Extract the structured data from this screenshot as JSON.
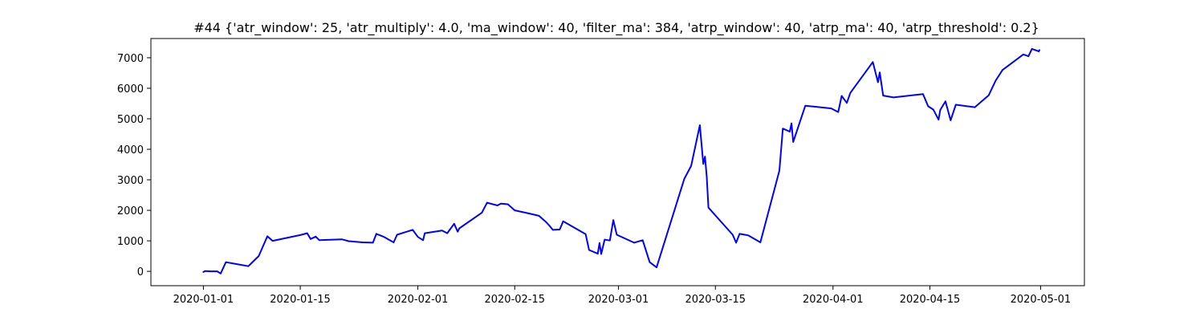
{
  "chart_data": {
    "type": "line",
    "title": "#44 {'atr_window': 25, 'atr_multiply': 4.0, 'ma_window': 40, 'filter_ma': 384, 'atrp_window': 40, 'atrp_ma': 40, 'atrp_threshold': 0.2}",
    "xlabel": "",
    "ylabel": "",
    "grid": false,
    "xlim": [
      "2019-12-24T10:00",
      "2020-05-07T08:00"
    ],
    "ylim": [
      -470,
      7630
    ],
    "x_ticks": [
      "2020-01-01",
      "2020-01-15",
      "2020-02-01",
      "2020-02-15",
      "2020-03-01",
      "2020-03-15",
      "2020-04-01",
      "2020-04-15",
      "2020-05-01"
    ],
    "y_ticks": [
      0,
      1000,
      2000,
      3000,
      4000,
      5000,
      6000,
      7000
    ],
    "series": [
      {
        "color": "#0000ff",
        "points": [
          [
            "2020-01-01T00:00",
            -20
          ],
          [
            "2020-01-01T06:00",
            10
          ],
          [
            "2020-01-02T00:00",
            0
          ],
          [
            "2020-01-03T00:00",
            0
          ],
          [
            "2020-01-03T12:00",
            -70
          ],
          [
            "2020-01-04T06:00",
            300
          ],
          [
            "2020-01-06T00:00",
            230
          ],
          [
            "2020-01-07T12:00",
            170
          ],
          [
            "2020-01-08T00:00",
            280
          ],
          [
            "2020-01-09T00:00",
            500
          ],
          [
            "2020-01-10T06:00",
            1150
          ],
          [
            "2020-01-11T00:00",
            1000
          ],
          [
            "2020-01-15T00:00",
            1190
          ],
          [
            "2020-01-16T00:00",
            1250
          ],
          [
            "2020-01-16T12:00",
            1060
          ],
          [
            "2020-01-17T06:00",
            1140
          ],
          [
            "2020-01-17T18:00",
            1020
          ],
          [
            "2020-01-21T00:00",
            1050
          ],
          [
            "2020-01-22T00:00",
            990
          ],
          [
            "2020-01-24T00:00",
            950
          ],
          [
            "2020-01-25T12:00",
            940
          ],
          [
            "2020-01-26T00:00",
            1230
          ],
          [
            "2020-01-27T00:00",
            1140
          ],
          [
            "2020-01-28T12:00",
            950
          ],
          [
            "2020-01-29T00:00",
            1200
          ],
          [
            "2020-01-31T06:00",
            1360
          ],
          [
            "2020-02-01T00:00",
            1130
          ],
          [
            "2020-02-01T18:00",
            1020
          ],
          [
            "2020-02-02T00:00",
            1250
          ],
          [
            "2020-02-04T12:00",
            1340
          ],
          [
            "2020-02-05T06:00",
            1250
          ],
          [
            "2020-02-06T06:00",
            1560
          ],
          [
            "2020-02-06T18:00",
            1300
          ],
          [
            "2020-02-07T00:00",
            1410
          ],
          [
            "2020-02-10T06:00",
            1920
          ],
          [
            "2020-02-11T00:00",
            2250
          ],
          [
            "2020-02-12T12:00",
            2160
          ],
          [
            "2020-02-13T00:00",
            2220
          ],
          [
            "2020-02-14T00:00",
            2200
          ],
          [
            "2020-02-15T00:00",
            2000
          ],
          [
            "2020-02-17T00:00",
            1900
          ],
          [
            "2020-02-18T12:00",
            1820
          ],
          [
            "2020-02-19T12:00",
            1620
          ],
          [
            "2020-02-20T00:00",
            1500
          ],
          [
            "2020-02-20T12:00",
            1360
          ],
          [
            "2020-02-21T12:00",
            1370
          ],
          [
            "2020-02-22T00:00",
            1640
          ],
          [
            "2020-02-25T06:00",
            1220
          ],
          [
            "2020-02-25T18:00",
            700
          ],
          [
            "2020-02-27T00:00",
            580
          ],
          [
            "2020-02-27T06:00",
            930
          ],
          [
            "2020-02-27T12:00",
            570
          ],
          [
            "2020-02-28T00:00",
            1040
          ],
          [
            "2020-02-28T18:00",
            1010
          ],
          [
            "2020-02-29T06:00",
            1680
          ],
          [
            "2020-02-29T18:00",
            1200
          ],
          [
            "2020-03-03T06:00",
            940
          ],
          [
            "2020-03-04T12:00",
            1020
          ],
          [
            "2020-03-05T12:00",
            300
          ],
          [
            "2020-03-06T12:00",
            130
          ],
          [
            "2020-03-10T12:00",
            3030
          ],
          [
            "2020-03-11T12:00",
            3460
          ],
          [
            "2020-03-12T18:00",
            4790
          ],
          [
            "2020-03-13T06:00",
            3520
          ],
          [
            "2020-03-13T12:00",
            3760
          ],
          [
            "2020-03-13T18:00",
            3100
          ],
          [
            "2020-03-14T00:00",
            2090
          ],
          [
            "2020-03-17T12:00",
            1200
          ],
          [
            "2020-03-18T00:00",
            940
          ],
          [
            "2020-03-18T12:00",
            1230
          ],
          [
            "2020-03-19T06:00",
            1200
          ],
          [
            "2020-03-19T18:00",
            1180
          ],
          [
            "2020-03-21T12:00",
            950
          ],
          [
            "2020-03-24T06:00",
            3300
          ],
          [
            "2020-03-24T18:00",
            4680
          ],
          [
            "2020-03-25T18:00",
            4580
          ],
          [
            "2020-03-26T00:00",
            4850
          ],
          [
            "2020-03-26T06:00",
            4240
          ],
          [
            "2020-03-28T00:00",
            5430
          ],
          [
            "2020-03-31T18:00",
            5340
          ],
          [
            "2020-04-01T18:00",
            5220
          ],
          [
            "2020-04-02T06:00",
            5750
          ],
          [
            "2020-04-03T00:00",
            5520
          ],
          [
            "2020-04-03T12:00",
            5850
          ],
          [
            "2020-04-06T18:00",
            6860
          ],
          [
            "2020-04-07T12:00",
            6200
          ],
          [
            "2020-04-07T18:00",
            6520
          ],
          [
            "2020-04-08T06:00",
            5760
          ],
          [
            "2020-04-09T18:00",
            5700
          ],
          [
            "2020-04-14T00:00",
            5810
          ],
          [
            "2020-04-14T18:00",
            5410
          ],
          [
            "2020-04-15T12:00",
            5300
          ],
          [
            "2020-04-16T06:00",
            4970
          ],
          [
            "2020-04-16T12:00",
            5290
          ],
          [
            "2020-04-17T06:00",
            5570
          ],
          [
            "2020-04-18T00:00",
            4950
          ],
          [
            "2020-04-18T18:00",
            5460
          ],
          [
            "2020-04-21T12:00",
            5380
          ],
          [
            "2020-04-23T12:00",
            5770
          ],
          [
            "2020-04-24T12:00",
            6250
          ],
          [
            "2020-04-25T12:00",
            6600
          ],
          [
            "2020-04-28T12:00",
            7110
          ],
          [
            "2020-04-29T06:00",
            7050
          ],
          [
            "2020-04-29T18:00",
            7290
          ],
          [
            "2020-04-30T18:00",
            7210
          ],
          [
            "2020-04-30T20:00",
            7250
          ]
        ]
      }
    ]
  }
}
